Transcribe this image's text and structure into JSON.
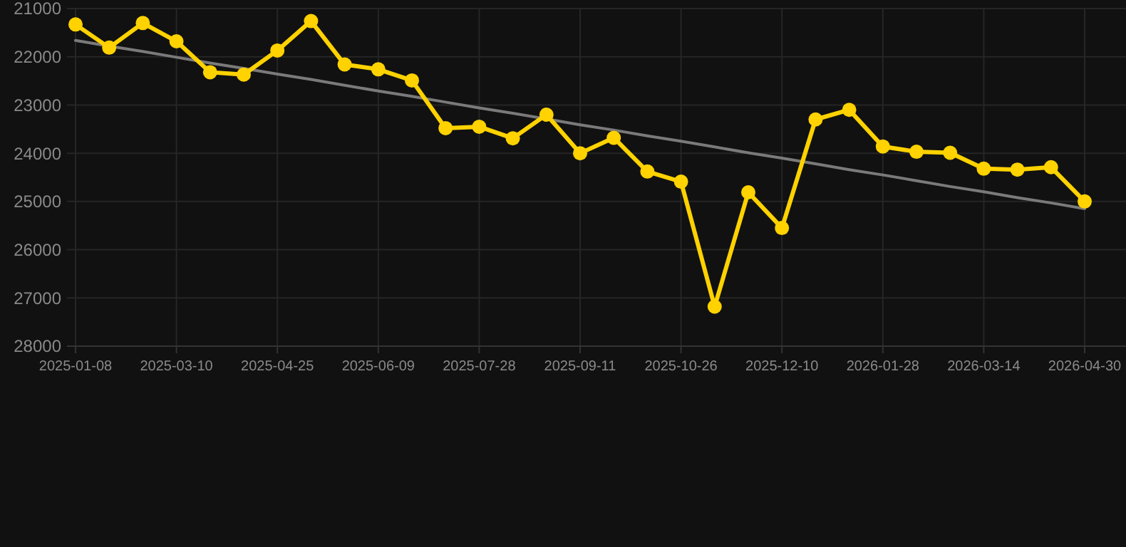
{
  "chart_data": {
    "type": "line",
    "categories": [
      "2025-01-08",
      null,
      null,
      "2025-03-10",
      null,
      null,
      "2025-04-25",
      null,
      null,
      "2025-06-09",
      null,
      null,
      "2025-07-28",
      null,
      null,
      "2025-09-11",
      null,
      null,
      "2025-10-26",
      null,
      null,
      "2025-12-10",
      null,
      null,
      "2026-01-28",
      null,
      null,
      "2026-03-14",
      null,
      null,
      "2026-04-30"
    ],
    "series": [
      {
        "color": "#ffd200",
        "marker": "circle",
        "values": [
          21330,
          21810,
          21300,
          21680,
          22320,
          22370,
          21870,
          21260,
          22160,
          22260,
          22490,
          23480,
          23450,
          23690,
          23200,
          24000,
          23680,
          24380,
          24590,
          27180,
          24810,
          25550,
          23300,
          23100,
          23860,
          23970,
          23990,
          24320,
          24340,
          24290,
          25000
        ]
      },
      {
        "type": "line",
        "color": "#7a7a7a",
        "marker": "none",
        "values": [
          21660,
          21780,
          21890,
          22010,
          22130,
          22240,
          22360,
          22470,
          22590,
          22710,
          22820,
          22940,
          23060,
          23170,
          23290,
          23410,
          23520,
          23640,
          23750,
          23870,
          23990,
          24100,
          24220,
          24340,
          24450,
          24570,
          24690,
          24800,
          24920,
          25030,
          25150
        ]
      }
    ],
    "ylim": [
      28000,
      21000
    ],
    "yticks": [
      21000,
      22000,
      23000,
      24000,
      25000,
      26000,
      27000,
      28000
    ],
    "grid": true
  }
}
